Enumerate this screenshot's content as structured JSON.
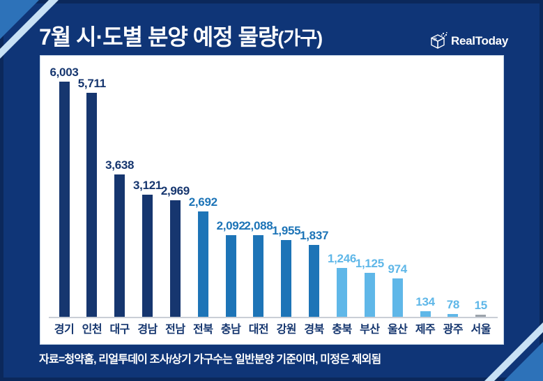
{
  "header": {
    "title_main": "7월 시·도별 분양 예정 물량",
    "title_unit": "(가구)",
    "logo_text": "RealToday"
  },
  "footer": {
    "source_note": "자료=청약홈, 리얼투데이 조사/상기 가구수는 일반분양 기준이며, 미정은 제외됨"
  },
  "colors": {
    "background_navy": "#0f3577",
    "panel_white": "#ffffff",
    "bar_dark_navy": "#16366f",
    "bar_medium_blue": "#1d74b7",
    "bar_light_blue": "#5fb7e8",
    "bar_gray": "#9ca3ab",
    "axis_line": "#c9ced6",
    "category_label": "#14356e",
    "corner_triangle": "#2d72b9",
    "corner_stripe": "#c8e1f5",
    "title_text": "#ffffff"
  },
  "chart_data": {
    "type": "bar",
    "title": "7월 시·도별 분양 예정 물량(가구)",
    "xlabel": "",
    "ylabel": "",
    "unit": "가구",
    "grid": false,
    "legend": false,
    "ylim": [
      0,
      6300
    ],
    "categories": [
      "경기",
      "인천",
      "대구",
      "경남",
      "전남",
      "전북",
      "충남",
      "대전",
      "강원",
      "경북",
      "충북",
      "부산",
      "울산",
      "제주",
      "광주",
      "서울"
    ],
    "values": [
      6003,
      5711,
      3638,
      3121,
      2969,
      2692,
      2092,
      2088,
      1955,
      1837,
      1246,
      1125,
      974,
      134,
      78,
      15
    ],
    "value_labels": [
      "6,003",
      "5,711",
      "3,638",
      "3,121",
      "2,969",
      "2,692",
      "2,092",
      "2,088",
      "1,955",
      "1,837",
      "1,246",
      "1,125",
      "974",
      "134",
      "78",
      "15"
    ],
    "bar_colors": [
      "#16366f",
      "#16366f",
      "#16366f",
      "#16366f",
      "#16366f",
      "#1d74b7",
      "#1d74b7",
      "#1d74b7",
      "#1d74b7",
      "#1d74b7",
      "#5fb7e8",
      "#5fb7e8",
      "#5fb7e8",
      "#5fb7e8",
      "#5fb7e8",
      "#9ca3ab"
    ],
    "value_label_colors": [
      "#16366f",
      "#16366f",
      "#16366f",
      "#16366f",
      "#16366f",
      "#1d74b7",
      "#1d74b7",
      "#1d74b7",
      "#1d74b7",
      "#1d74b7",
      "#5fb7e8",
      "#5fb7e8",
      "#5fb7e8",
      "#5fb7e8",
      "#5fb7e8",
      "#5fb7e8"
    ],
    "category_label_color": "#14356e"
  }
}
